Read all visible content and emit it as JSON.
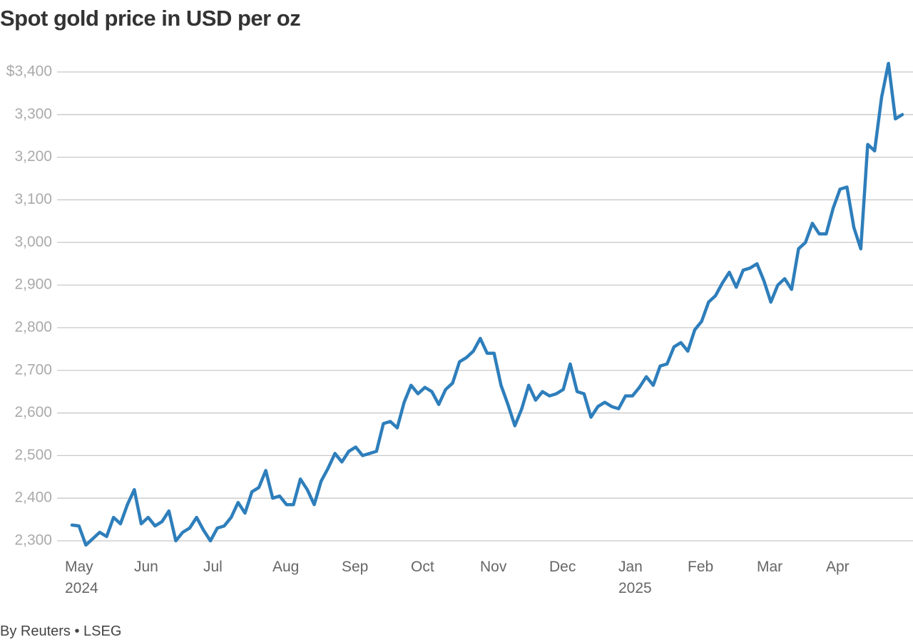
{
  "chart_data": {
    "type": "line",
    "title": "Spot gold price in USD per oz",
    "source": "By Reuters • LSEG",
    "color": "#2e7ebb",
    "grid": true,
    "ylim": [
      2300,
      3400
    ],
    "yticks": [
      {
        "value": 2300,
        "label": "2,300"
      },
      {
        "value": 2400,
        "label": "2,400"
      },
      {
        "value": 2500,
        "label": "2,500"
      },
      {
        "value": 2600,
        "label": "2,600"
      },
      {
        "value": 2700,
        "label": "2,700"
      },
      {
        "value": 2800,
        "label": "2,800"
      },
      {
        "value": 2900,
        "label": "2,900"
      },
      {
        "value": 3000,
        "label": "3,000"
      },
      {
        "value": 3100,
        "label": "3,100"
      },
      {
        "value": 3200,
        "label": "3,200"
      },
      {
        "value": 3300,
        "label": "3,300"
      },
      {
        "value": 3400,
        "label": "$3,400"
      }
    ],
    "categories": [
      "May\n2024",
      null,
      null,
      null,
      null,
      null,
      null,
      null,
      null,
      null,
      "Jun",
      null,
      null,
      null,
      null,
      null,
      null,
      null,
      null,
      null,
      "Jul",
      null,
      null,
      null,
      null,
      null,
      null,
      null,
      null,
      null,
      "Aug",
      null,
      null,
      null,
      null,
      null,
      null,
      null,
      null,
      null,
      "Sep",
      null,
      null,
      null,
      null,
      null,
      null,
      null,
      null,
      null,
      "Oct",
      null,
      null,
      null,
      null,
      null,
      null,
      null,
      null,
      null,
      "Nov",
      null,
      null,
      null,
      null,
      null,
      null,
      null,
      null,
      null,
      "Dec",
      null,
      null,
      null,
      null,
      null,
      null,
      null,
      null,
      null,
      "Jan\n2025",
      null,
      null,
      null,
      null,
      null,
      null,
      null,
      null,
      null,
      "Feb",
      null,
      null,
      null,
      null,
      null,
      null,
      null,
      null,
      null,
      "Mar",
      null,
      null,
      null,
      null,
      null,
      null,
      null,
      null,
      null,
      "Apr",
      null,
      null,
      null,
      null,
      null,
      null,
      null,
      null,
      null,
      null
    ],
    "values": [
      2337,
      2335,
      2290,
      2305,
      2320,
      2310,
      2355,
      2340,
      2385,
      2420,
      2340,
      2355,
      2335,
      2345,
      2370,
      2300,
      2320,
      2330,
      2355,
      2325,
      2300,
      2330,
      2335,
      2355,
      2390,
      2365,
      2415,
      2425,
      2465,
      2400,
      2405,
      2385,
      2385,
      2445,
      2420,
      2385,
      2440,
      2470,
      2505,
      2485,
      2510,
      2520,
      2500,
      2505,
      2510,
      2575,
      2580,
      2565,
      2625,
      2665,
      2645,
      2660,
      2650,
      2620,
      2655,
      2670,
      2720,
      2730,
      2745,
      2775,
      2740,
      2740,
      2665,
      2620,
      2570,
      2610,
      2665,
      2630,
      2650,
      2640,
      2645,
      2655,
      2715,
      2650,
      2645,
      2590,
      2615,
      2625,
      2615,
      2610,
      2640,
      2640,
      2660,
      2685,
      2665,
      2710,
      2715,
      2755,
      2765,
      2745,
      2795,
      2815,
      2860,
      2875,
      2905,
      2930,
      2895,
      2935,
      2940,
      2950,
      2910,
      2860,
      2900,
      2915,
      2890,
      2985,
      3000,
      3045,
      3020,
      3020,
      3080,
      3125,
      3130,
      3035,
      2985,
      3230,
      3215,
      3340,
      3420,
      3290,
      3300
    ]
  }
}
